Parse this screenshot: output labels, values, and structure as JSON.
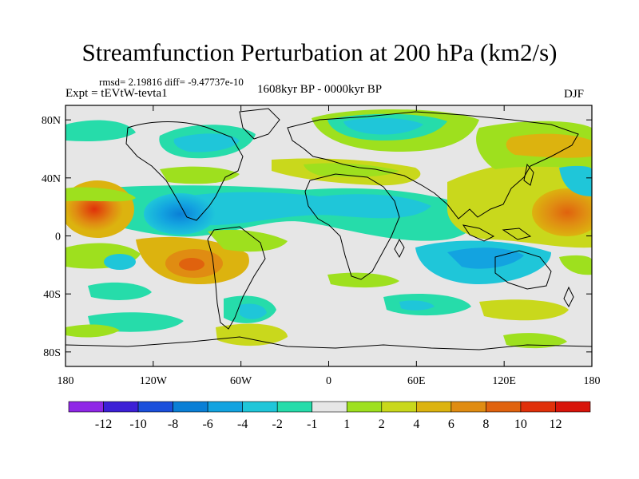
{
  "title": "Streamfunction Perturbation at 200 hPa (km2/s)",
  "stats": "rmsd= 2.19816 diff= -9.47737e-10",
  "experiment": "Expt = tEVtW-tevta1",
  "period": "1608kyr BP - 0000kyr BP",
  "season": "DJF",
  "map": {
    "projection": "cylindrical equidistant",
    "lon_range": [
      180,
      540
    ],
    "lat_range": [
      -90,
      90
    ],
    "lat_ticks": [
      {
        "value": 80,
        "label": "80N"
      },
      {
        "value": 40,
        "label": "40N"
      },
      {
        "value": 0,
        "label": "0"
      },
      {
        "value": -40,
        "label": "40S"
      },
      {
        "value": -80,
        "label": "80S"
      }
    ],
    "lon_ticks": [
      {
        "value": 180,
        "label": "180"
      },
      {
        "value": 240,
        "label": "120W"
      },
      {
        "value": 300,
        "label": "60W"
      },
      {
        "value": 360,
        "label": "0"
      },
      {
        "value": 420,
        "label": "60E"
      },
      {
        "value": 480,
        "label": "120E"
      },
      {
        "value": 540,
        "label": "180"
      }
    ],
    "background_color": "#e6e6e6"
  },
  "colorbar": {
    "labels": [
      "-12",
      "-10",
      "-8",
      "-6",
      "-4",
      "-2",
      "-1",
      "1",
      "2",
      "4",
      "6",
      "8",
      "10",
      "12"
    ],
    "colors": [
      "#8f27e6",
      "#3c1fd6",
      "#1b4fdb",
      "#0a7fd6",
      "#13a3e0",
      "#1fc6d9",
      "#26dcaa",
      "#e6e6e6",
      "#9ee01e",
      "#c9d81c",
      "#dcb30f",
      "#e08c12",
      "#e0620e",
      "#e0300a",
      "#d8140a"
    ]
  },
  "chart_data": {
    "type": "heatmap",
    "variable": "Streamfunction Perturbation at 200 hPa",
    "units": "km2/s",
    "levels": [
      -12,
      -10,
      -8,
      -6,
      -4,
      -2,
      -1,
      1,
      2,
      4,
      6,
      8,
      10,
      12
    ],
    "features": [
      {
        "lon": 200,
        "lat": 18,
        "value": 10
      },
      {
        "lon": 535,
        "lat": 15,
        "value": 8
      },
      {
        "lon": 245,
        "lat": -22,
        "value": 8
      },
      {
        "lon": 240,
        "lat": 12,
        "value": -7
      },
      {
        "lon": 365,
        "lat": 70,
        "value": -3
      },
      {
        "lon": 330,
        "lat": 20,
        "value": -2
      },
      {
        "lon": 450,
        "lat": -25,
        "value": -3
      },
      {
        "lon": 460,
        "lat": 20,
        "value": 4
      },
      {
        "lon": 500,
        "lat": 55,
        "value": 4
      },
      {
        "lon": 440,
        "lat": -48,
        "value": -2
      }
    ]
  }
}
